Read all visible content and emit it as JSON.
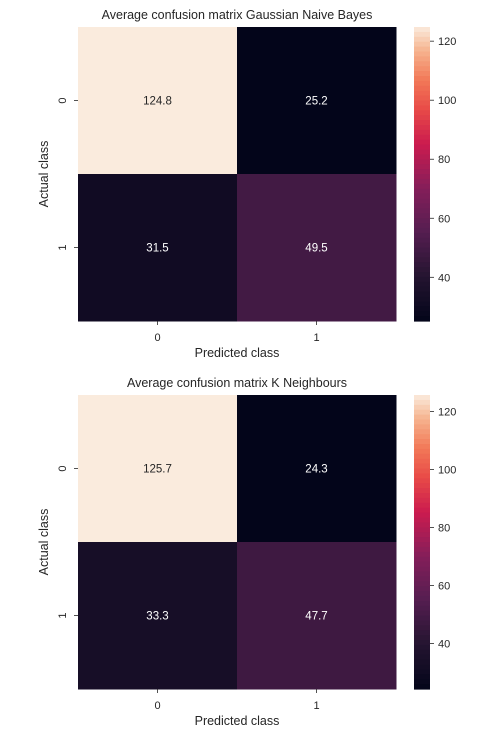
{
  "chart_data": [
    {
      "type": "heatmap",
      "title": "Average confusion matrix Gaussian Naive Bayes",
      "xlabel": "Predicted class",
      "ylabel": "Actual class",
      "x_categories": [
        "0",
        "1"
      ],
      "y_categories": [
        "0",
        "1"
      ],
      "values": [
        [
          124.8,
          25.2
        ],
        [
          31.5,
          49.5
        ]
      ],
      "cell_labels": [
        [
          "124.8",
          "25.2"
        ],
        [
          "31.5",
          "49.5"
        ]
      ],
      "colorbar": {
        "range": [
          25.2,
          124.8
        ],
        "ticks": [
          40,
          60,
          80,
          100,
          120
        ]
      },
      "colormap": "rocket",
      "grid": false
    },
    {
      "type": "heatmap",
      "title": "Average confusion matrix K Neighbours",
      "xlabel": "Predicted class",
      "ylabel": "Actual class",
      "x_categories": [
        "0",
        "1"
      ],
      "y_categories": [
        "0",
        "1"
      ],
      "values": [
        [
          125.7,
          24.3
        ],
        [
          33.3,
          47.7
        ]
      ],
      "cell_labels": [
        [
          "125.7",
          "24.3"
        ],
        [
          "33.3",
          "47.7"
        ]
      ],
      "colorbar": {
        "range": [
          24.3,
          125.7
        ],
        "ticks": [
          40,
          60,
          80,
          100,
          120
        ]
      },
      "colormap": "rocket",
      "grid": false
    }
  ]
}
